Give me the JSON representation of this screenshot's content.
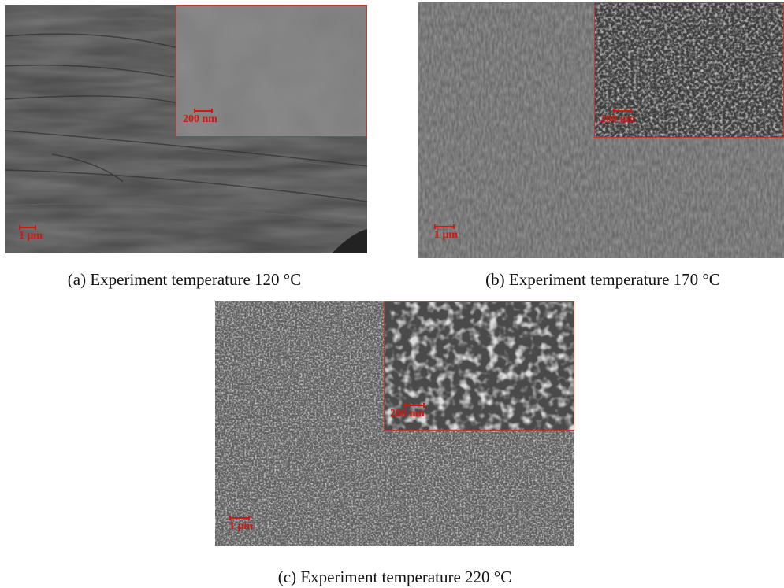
{
  "figure": {
    "panels": [
      {
        "id": "a",
        "caption": "(a) Experiment temperature 120 °C",
        "main_scale_label": "1 μm",
        "inset_scale_label": "200 nm"
      },
      {
        "id": "b",
        "caption": "(b) Experiment temperature 170 °C",
        "main_scale_label": "1 μm",
        "inset_scale_label": "200 nm"
      },
      {
        "id": "c",
        "caption": "(c) Experiment temperature 220 °C",
        "main_scale_label": "1 μm",
        "inset_scale_label": "200 nm"
      }
    ],
    "colors": {
      "scale_bar": "#d4160f",
      "inset_border": "#c0392b"
    }
  }
}
